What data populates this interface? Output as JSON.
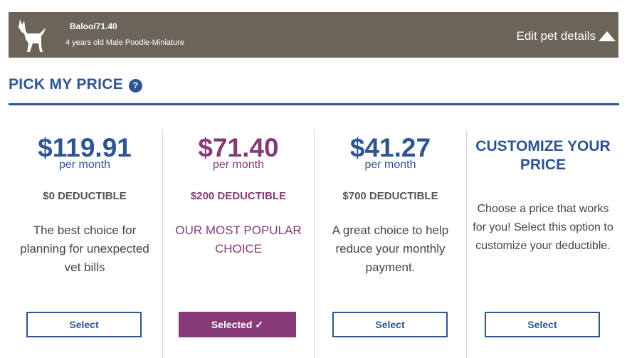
{
  "pet": {
    "name_price": "Baloo/71.40",
    "description": "4 years old Male Poodle-Miniature",
    "edit_label": "Edit pet details"
  },
  "section": {
    "title": "PICK MY PRICE",
    "help": "?"
  },
  "plans": [
    {
      "price": "$119.91",
      "period": "per month",
      "deductible": "$0 DEDUCTIBLE",
      "description": "The best choice for planning for unexpected vet bills",
      "button": "Select"
    },
    {
      "price": "$71.40",
      "period": "per month",
      "deductible": "$200 DEDUCTIBLE",
      "description": "OUR MOST POPULAR CHOICE",
      "button": "Selected ✓"
    },
    {
      "price": "$41.27",
      "period": "per month",
      "deductible": "$700 DEDUCTIBLE",
      "description": "A great choice to help reduce your monthly payment.",
      "button": "Select"
    }
  ],
  "custom": {
    "title": "CUSTOMIZE YOUR PRICE",
    "description": "Choose a price that works for you! Select this option to customize your deductible.",
    "button": "Select"
  },
  "colors": {
    "brand_blue": "#2d5592",
    "popular_purple": "#863a78",
    "pet_bar": "#6b6559"
  },
  "icons": {
    "pet": "dog-icon",
    "help": "question-icon",
    "edit": "caret-up-icon"
  }
}
